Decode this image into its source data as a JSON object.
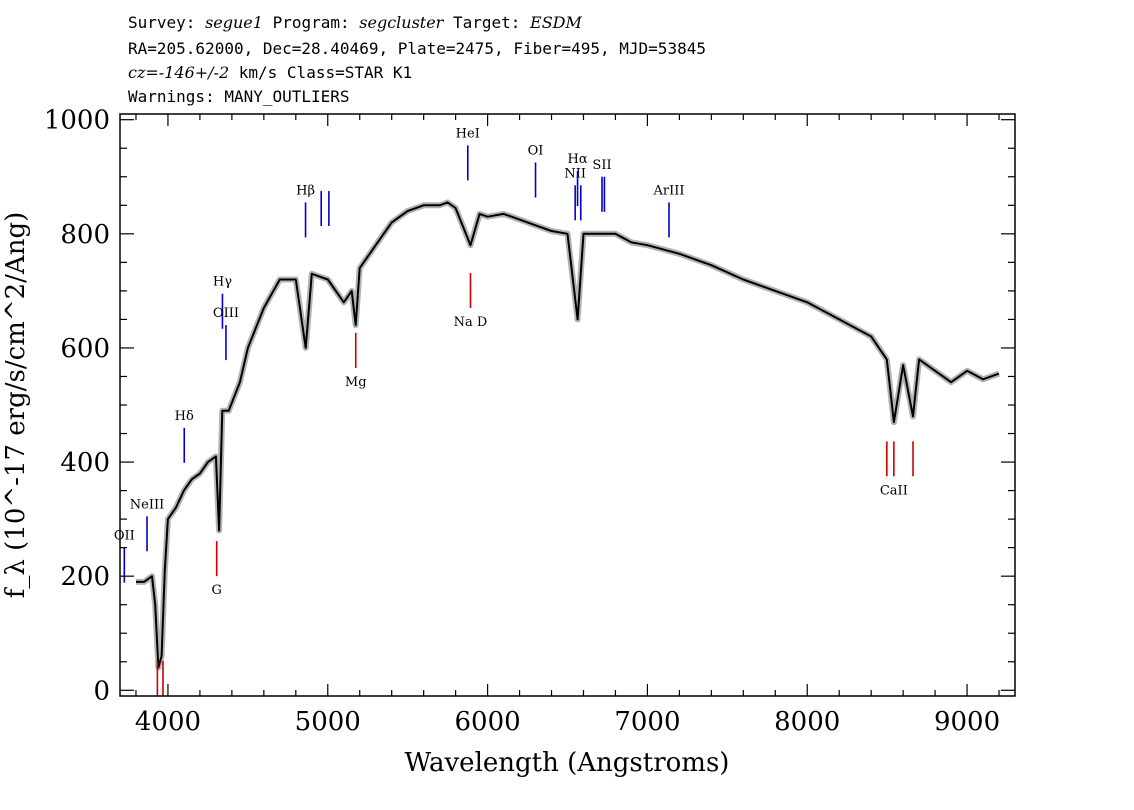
{
  "header": {
    "line1": {
      "survey_label": "Survey: ",
      "survey": "segue1",
      "program_label": " Program: ",
      "program": "segcluster",
      "target_label": " Target: ",
      "target": "ESDM"
    },
    "line2": "RA=205.62000, Dec=28.40469, Plate=2475, Fiber=495, MJD=53845",
    "line3": {
      "cz": "cz=-146+/-2",
      "rest": " km/s Class=STAR K1"
    },
    "line4": "Warnings: MANY_OUTLIERS"
  },
  "chart_data": {
    "type": "line",
    "xlabel": "Wavelength (Angstroms)",
    "ylabel": "f_λ (10^-17 erg/s/cm^2/Ang)",
    "xlim": [
      3700,
      9300
    ],
    "ylim": [
      -10,
      1010
    ],
    "xticks": [
      4000,
      5000,
      6000,
      7000,
      8000,
      9000
    ],
    "yticks": [
      0,
      200,
      400,
      600,
      800,
      1000
    ],
    "spectrum_color": "#000000",
    "error_color": "#b3b3b3",
    "series": [
      {
        "x": [
          3800,
          3850,
          3900,
          3920,
          3940,
          3960,
          3980,
          4000,
          4050,
          4100,
          4150,
          4200,
          4250,
          4300,
          4320,
          4340,
          4380,
          4450,
          4500,
          4600,
          4700,
          4800,
          4862,
          4900,
          5000,
          5100,
          5150,
          5175,
          5200,
          5300,
          5400,
          5500,
          5600,
          5700,
          5750,
          5800,
          5893,
          5950,
          6000,
          6100,
          6200,
          6300,
          6400,
          6500,
          6563,
          6600,
          6700,
          6800,
          6900,
          7000,
          7200,
          7400,
          7600,
          7800,
          8000,
          8200,
          8400,
          8498,
          8542,
          8600,
          8662,
          8700,
          8800,
          8900,
          9000,
          9100,
          9200
        ],
        "y": [
          190,
          190,
          200,
          150,
          40,
          60,
          210,
          300,
          320,
          350,
          370,
          380,
          400,
          410,
          280,
          490,
          490,
          540,
          600,
          670,
          720,
          720,
          600,
          730,
          720,
          680,
          700,
          640,
          740,
          780,
          820,
          840,
          850,
          850,
          855,
          845,
          780,
          835,
          830,
          835,
          825,
          815,
          805,
          800,
          650,
          800,
          800,
          800,
          785,
          780,
          765,
          745,
          720,
          700,
          680,
          650,
          620,
          580,
          470,
          570,
          480,
          580,
          560,
          540,
          560,
          545,
          555
        ]
      }
    ],
    "line_markers": [
      {
        "label": "OII",
        "wave": 3727,
        "color": "#0000cc",
        "side": "top",
        "value": 250
      },
      {
        "label": "NeIII",
        "wave": 3869,
        "color": "#0000cc",
        "side": "top",
        "value": 305
      },
      {
        "label": "Hδ",
        "wave": 4102,
        "color": "#0000cc",
        "side": "top",
        "value": 460
      },
      {
        "label": "Hγ",
        "wave": 4341,
        "color": "#0000cc",
        "side": "top",
        "value": 695
      },
      {
        "label": "OIII",
        "wave": 4363,
        "color": "#0000cc",
        "side": "top",
        "value": 640
      },
      {
        "label": "Hβ",
        "wave": 4861,
        "color": "#0000cc",
        "side": "top",
        "value": 855
      },
      {
        "label": "OIII",
        "wave": 4959,
        "color": "#0000cc",
        "side": "top",
        "value": 875
      },
      {
        "label": "OIII",
        "wave": 5007,
        "color": "#0000cc",
        "side": "top",
        "value": 875
      },
      {
        "label": "HeI",
        "wave": 5876,
        "color": "#0000cc",
        "side": "top",
        "value": 955
      },
      {
        "label": "OI",
        "wave": 6300,
        "color": "#0000cc",
        "side": "top",
        "value": 925
      },
      {
        "label": "NII",
        "wave": 6548,
        "color": "#0000cc",
        "side": "top",
        "value": 885
      },
      {
        "label": "Hα",
        "wave": 6563,
        "color": "#0000cc",
        "side": "top",
        "value": 910
      },
      {
        "label": "NII",
        "wave": 6583,
        "color": "#0000cc",
        "side": "top",
        "value": 885
      },
      {
        "label": "SII",
        "wave": 6716,
        "color": "#0000cc",
        "side": "top",
        "value": 900
      },
      {
        "label": "SII",
        "wave": 6731,
        "color": "#0000cc",
        "side": "top",
        "value": 900
      },
      {
        "label": "ArIII",
        "wave": 7135,
        "color": "#0000cc",
        "side": "top",
        "value": 855
      },
      {
        "label": "",
        "wave": 3934,
        "color": "#cc0000",
        "side": "bottom",
        "value": -10
      },
      {
        "label": "",
        "wave": 3969,
        "color": "#cc0000",
        "side": "bottom",
        "value": -10
      },
      {
        "label": "G",
        "wave": 4305,
        "color": "#cc0000",
        "side": "bottom",
        "value": 200
      },
      {
        "label": "Mg",
        "wave": 5175,
        "color": "#cc0000",
        "side": "bottom",
        "value": 565
      },
      {
        "label": "Na D",
        "wave": 5893,
        "color": "#cc0000",
        "side": "bottom",
        "value": 670
      },
      {
        "label": "",
        "wave": 8498,
        "color": "#cc0000",
        "side": "bottom",
        "value": 375
      },
      {
        "label": "CaII",
        "wave": 8542,
        "color": "#cc0000",
        "side": "bottom",
        "value": 375
      },
      {
        "label": "",
        "wave": 8662,
        "color": "#cc0000",
        "side": "bottom",
        "value": 375
      }
    ]
  }
}
